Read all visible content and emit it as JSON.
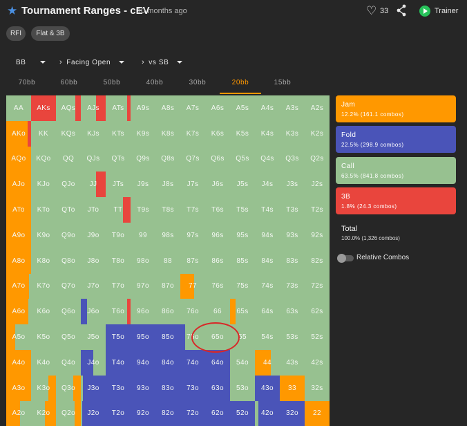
{
  "header": {
    "title": "Tournament Ranges - cEV",
    "age": "10 months ago",
    "like_count": "33",
    "trainer_label": "Trainer"
  },
  "pills": [
    {
      "label": "RFI"
    },
    {
      "label": "Flat & 3B"
    }
  ],
  "selectors": {
    "position": "BB",
    "scenario": "Facing Open",
    "opponent": "vs SB"
  },
  "stack_tabs": [
    {
      "label": "70bb"
    },
    {
      "label": "60bb"
    },
    {
      "label": "50bb"
    },
    {
      "label": "40bb"
    },
    {
      "label": "30bb"
    },
    {
      "label": "20bb"
    },
    {
      "label": "15bb"
    }
  ],
  "active_stack": "20bb",
  "colors": {
    "jam": "#ff9800",
    "fold": "#4a54b8",
    "call": "#97c190",
    "threebet": "#e9453d"
  },
  "legend": [
    {
      "key": "jam",
      "name": "Jam",
      "detail": "12.2% (161.1 combos)"
    },
    {
      "key": "fold",
      "name": "Fold",
      "detail": "22.5% (298.9 combos)"
    },
    {
      "key": "call",
      "name": "Call",
      "detail": "63.5% (841.8 combos)"
    },
    {
      "key": "threebet",
      "name": "3B",
      "detail": "1.8% (24.3 combos)"
    }
  ],
  "total": {
    "label": "Total",
    "detail": "100.0% (1,326 combos)"
  },
  "relative_combos": {
    "label": "Relative Combos",
    "on": false
  },
  "matrix": [
    [
      "AA",
      "AKs",
      "AQs",
      "AJs",
      "ATs",
      "A9s",
      "A8s",
      "A7s",
      "A6s",
      "A5s",
      "A4s",
      "A3s",
      "A2s"
    ],
    [
      "AKo",
      "KK",
      "KQs",
      "KJs",
      "KTs",
      "K9s",
      "K8s",
      "K7s",
      "K6s",
      "K5s",
      "K4s",
      "K3s",
      "K2s"
    ],
    [
      "AQo",
      "KQo",
      "QQ",
      "QJs",
      "QTs",
      "Q9s",
      "Q8s",
      "Q7s",
      "Q6s",
      "Q5s",
      "Q4s",
      "Q3s",
      "Q2s"
    ],
    [
      "AJo",
      "KJo",
      "QJo",
      "JJ",
      "JTs",
      "J9s",
      "J8s",
      "J7s",
      "J6s",
      "J5s",
      "J4s",
      "J3s",
      "J2s"
    ],
    [
      "ATo",
      "KTo",
      "QTo",
      "JTo",
      "TT",
      "T9s",
      "T8s",
      "T7s",
      "T6s",
      "T5s",
      "T4s",
      "T3s",
      "T2s"
    ],
    [
      "A9o",
      "K9o",
      "Q9o",
      "J9o",
      "T9o",
      "99",
      "98s",
      "97s",
      "96s",
      "95s",
      "94s",
      "93s",
      "92s"
    ],
    [
      "A8o",
      "K8o",
      "Q8o",
      "J8o",
      "T8o",
      "98o",
      "88",
      "87s",
      "86s",
      "85s",
      "84s",
      "83s",
      "82s"
    ],
    [
      "A7o",
      "K7o",
      "Q7o",
      "J7o",
      "T7o",
      "97o",
      "87o",
      "77",
      "76s",
      "75s",
      "74s",
      "73s",
      "72s"
    ],
    [
      "A6o",
      "K6o",
      "Q6o",
      "J6o",
      "T6o",
      "96o",
      "86o",
      "76o",
      "66",
      "65s",
      "64s",
      "63s",
      "62s"
    ],
    [
      "A5o",
      "K5o",
      "Q5o",
      "J5o",
      "T5o",
      "95o",
      "85o",
      "75o",
      "65o",
      "55",
      "54s",
      "53s",
      "52s"
    ],
    [
      "A4o",
      "K4o",
      "Q4o",
      "J4o",
      "T4o",
      "94o",
      "84o",
      "74o",
      "64o",
      "54o",
      "44",
      "43s",
      "42s"
    ],
    [
      "A3o",
      "K3o",
      "Q3o",
      "J3o",
      "T3o",
      "93o",
      "83o",
      "73o",
      "63o",
      "53o",
      "43o",
      "33",
      "32s"
    ],
    [
      "A2o",
      "K2o",
      "Q2o",
      "J2o",
      "T2o",
      "92o",
      "82o",
      "72o",
      "62o",
      "52o",
      "42o",
      "32o",
      "22"
    ]
  ],
  "strategy": {
    "AKs": [
      [
        "threebet",
        1
      ]
    ],
    "AQs": [
      [
        "call",
        0.78
      ],
      [
        "threebet",
        0.22
      ]
    ],
    "AJs": [
      [
        "call",
        0.62
      ],
      [
        "threebet",
        0.38
      ]
    ],
    "ATs": [
      [
        "call",
        0.85
      ],
      [
        "threebet",
        0.15
      ]
    ],
    "AKo": [
      [
        "jam",
        0.85
      ],
      [
        "threebet",
        0.15
      ]
    ],
    "AQo": [
      [
        "jam",
        1
      ]
    ],
    "AJo": [
      [
        "jam",
        1
      ]
    ],
    "ATo": [
      [
        "jam",
        1
      ]
    ],
    "A9o": [
      [
        "jam",
        1
      ]
    ],
    "A8o": [
      [
        "jam",
        1
      ]
    ],
    "A7o": [
      [
        "jam",
        0.92
      ],
      [
        "call",
        0.08
      ]
    ],
    "A6o": [
      [
        "jam",
        0.9
      ],
      [
        "call",
        0.1
      ]
    ],
    "A5o": [
      [
        "jam",
        0.35
      ],
      [
        "call",
        0.65
      ]
    ],
    "A4o": [
      [
        "jam",
        1
      ]
    ],
    "A3o": [
      [
        "jam",
        1
      ]
    ],
    "A2o": [
      [
        "jam",
        0.55
      ],
      [
        "call",
        0.45
      ]
    ],
    "JJ": [
      [
        "call",
        0.6
      ],
      [
        "threebet",
        0.4
      ]
    ],
    "TT": [
      [
        "call",
        0.7
      ],
      [
        "threebet",
        0.3
      ]
    ],
    "77": [
      [
        "jam",
        0.55
      ],
      [
        "call",
        0.45
      ]
    ],
    "44": [
      [
        "jam",
        0.65
      ],
      [
        "call",
        0.35
      ]
    ],
    "33": [
      [
        "jam",
        1
      ]
    ],
    "22": [
      [
        "jam",
        1
      ]
    ],
    "65s": [
      [
        "jam",
        0.22
      ],
      [
        "call",
        0.78
      ]
    ],
    "K3o": [
      [
        "call",
        0.7
      ],
      [
        "jam",
        0.3
      ]
    ],
    "K2o": [
      [
        "call",
        0.55
      ],
      [
        "jam",
        0.45
      ]
    ],
    "Q3o": [
      [
        "call",
        0.7
      ],
      [
        "jam",
        0.3
      ]
    ],
    "Q2o": [
      [
        "call",
        0.75
      ],
      [
        "jam",
        0.25
      ]
    ],
    "J6o": [
      [
        "fold",
        0.25
      ],
      [
        "call",
        0.75
      ]
    ],
    "J4o": [
      [
        "fold",
        0.5
      ],
      [
        "call",
        0.5
      ]
    ],
    "J3o": [
      [
        "call",
        0.08
      ],
      [
        "fold",
        0.92
      ]
    ],
    "J2o": [
      [
        "call",
        0.05
      ],
      [
        "fold",
        0.95
      ]
    ],
    "T6o": [
      [
        "call",
        0.85
      ],
      [
        "threebet",
        0.15
      ]
    ],
    "T5o": [
      [
        "fold",
        1
      ]
    ],
    "T4o": [
      [
        "fold",
        1
      ]
    ],
    "T3o": [
      [
        "fold",
        1
      ]
    ],
    "T2o": [
      [
        "fold",
        1
      ]
    ],
    "95o": [
      [
        "fold",
        1
      ]
    ],
    "94o": [
      [
        "fold",
        1
      ]
    ],
    "93o": [
      [
        "fold",
        1
      ]
    ],
    "92o": [
      [
        "fold",
        1
      ]
    ],
    "85o": [
      [
        "fold",
        1
      ]
    ],
    "84o": [
      [
        "fold",
        1
      ]
    ],
    "83o": [
      [
        "fold",
        1
      ]
    ],
    "82o": [
      [
        "fold",
        1
      ]
    ],
    "75o": [
      [
        "fold",
        0.2
      ],
      [
        "call",
        0.8
      ]
    ],
    "74o": [
      [
        "fold",
        1
      ]
    ],
    "73o": [
      [
        "fold",
        1
      ]
    ],
    "72o": [
      [
        "fold",
        1
      ]
    ],
    "64o": [
      [
        "fold",
        1
      ]
    ],
    "63o": [
      [
        "fold",
        1
      ]
    ],
    "62o": [
      [
        "fold",
        1
      ]
    ],
    "53o": [
      [
        "call",
        1
      ]
    ],
    "52o": [
      [
        "fold",
        1
      ]
    ],
    "43o": [
      [
        "fold",
        1
      ]
    ],
    "42o": [
      [
        "call",
        0.15
      ],
      [
        "fold",
        0.85
      ]
    ],
    "32o": [
      [
        "fold",
        1
      ]
    ],
    "88": [
      [
        "call",
        1
      ]
    ],
    "98o": [
      [
        "call",
        1
      ]
    ]
  }
}
